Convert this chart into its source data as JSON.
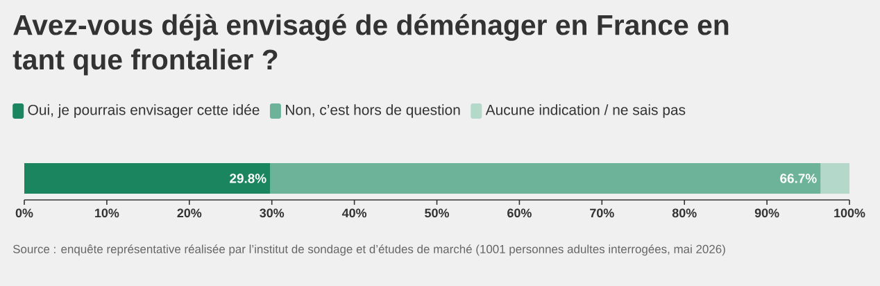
{
  "chart_data": {
    "type": "bar",
    "orientation": "horizontal",
    "stacked": true,
    "title": "Avez-vous déjà envisagé de déménager en France en tant que frontalier ?",
    "categories": [
      null
    ],
    "series": [
      {
        "name": "Oui, je pourrais envisager cette idée",
        "color": "#1b8560",
        "values": [
          29.8
        ],
        "value_labels": [
          "29.8%"
        ]
      },
      {
        "name": "Non, c’est hors de question",
        "color": "#6cb39a",
        "values": [
          66.7
        ],
        "value_labels": [
          "66.7%"
        ]
      },
      {
        "name": "Aucune indication / ne sais pas",
        "color": "#b4d8c9",
        "values": [
          3.5
        ],
        "value_labels": [
          null
        ]
      }
    ],
    "xlim": [
      0,
      100
    ],
    "xticks": [
      {
        "value": 0,
        "label": "0%"
      },
      {
        "value": 10,
        "label": "10%"
      },
      {
        "value": 20,
        "label": "20%"
      },
      {
        "value": 30,
        "label": "30%"
      },
      {
        "value": 40,
        "label": "40%"
      },
      {
        "value": 50,
        "label": "50%"
      },
      {
        "value": 60,
        "label": "60%"
      },
      {
        "value": 70,
        "label": "70%"
      },
      {
        "value": 80,
        "label": "80%"
      },
      {
        "value": 90,
        "label": "90%"
      },
      {
        "value": 100,
        "label": "100%"
      }
    ],
    "legend": "top left",
    "annotations": [
      "Source : enquête représentative réalisée par l’institut de sondage et d’études de marché (1001 personnes adultes interrogées, mai 2026)"
    ]
  }
}
